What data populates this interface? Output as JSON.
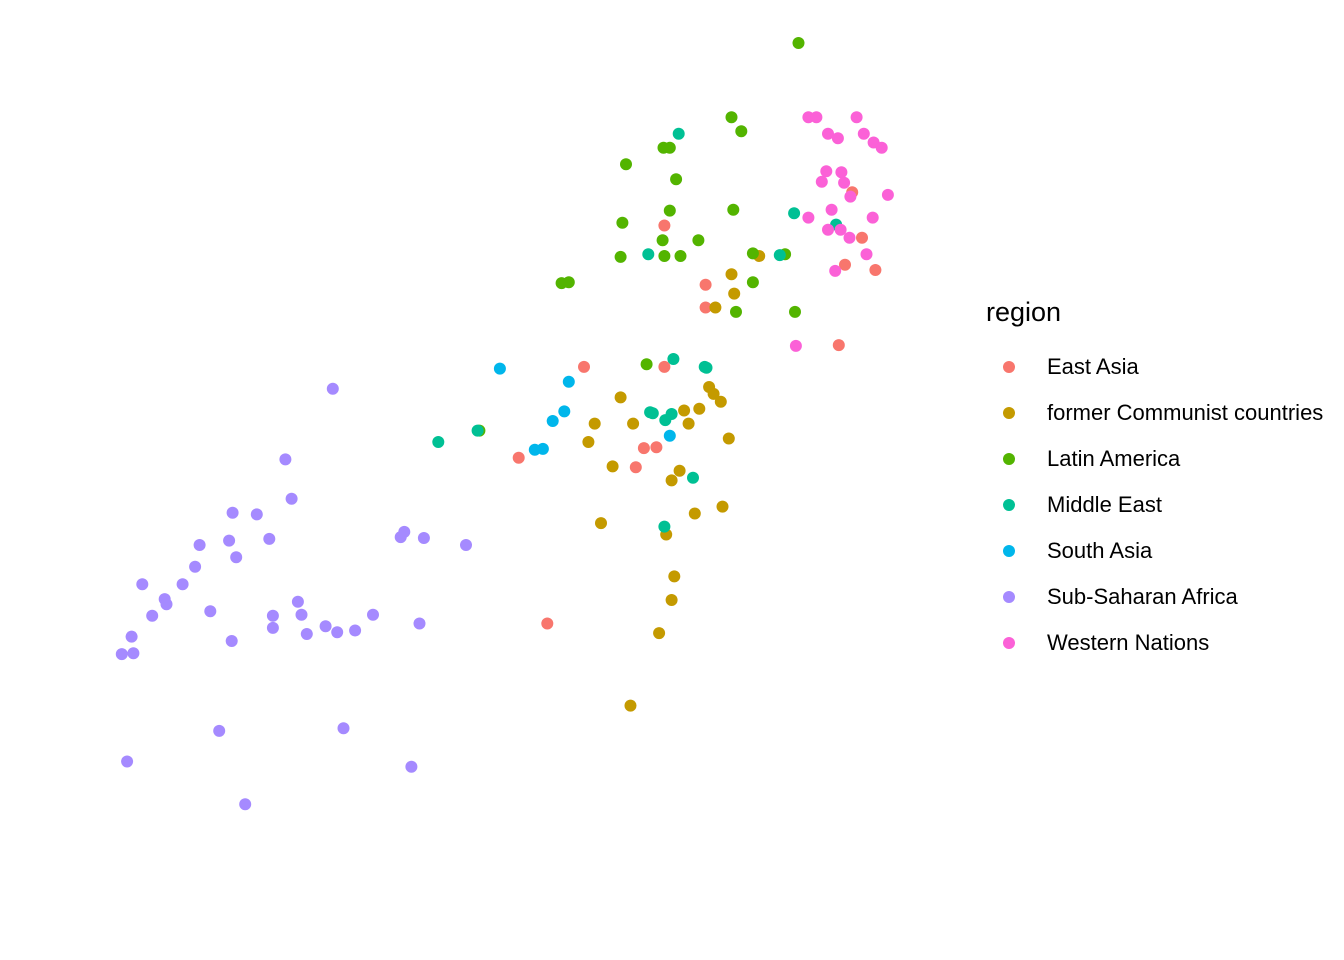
{
  "chart_data": {
    "type": "scatter",
    "title": "",
    "xlabel": "",
    "ylabel": "",
    "grid": false,
    "axes_visible": false,
    "xlim": [
      0,
      100
    ],
    "ylim": [
      0,
      100
    ],
    "legend": {
      "title": "region",
      "placement": "right"
    },
    "series": [
      {
        "name": "East Asia",
        "color": "#F8766D",
        "points": [
          [
            56.3,
            33.5
          ],
          [
            69.4,
            79.1
          ],
          [
            74.0,
            69.7
          ],
          [
            74.0,
            72.3
          ],
          [
            69.4,
            62.9
          ],
          [
            68.5,
            53.7
          ],
          [
            66.2,
            51.4
          ],
          [
            67.1,
            53.6
          ],
          [
            60.4,
            62.9
          ],
          [
            89.6,
            74.6
          ],
          [
            88.9,
            65.4
          ],
          [
            90.4,
            82.9
          ],
          [
            91.5,
            77.7
          ],
          [
            93.0,
            74.0
          ],
          [
            53.1,
            52.5
          ]
        ]
      },
      {
        "name": "former Communist countries",
        "color": "#C49A00",
        "points": [
          [
            62.3,
            45.0
          ],
          [
            65.9,
            56.4
          ],
          [
            63.6,
            51.5
          ],
          [
            61.6,
            56.4
          ],
          [
            60.9,
            54.3
          ],
          [
            64.5,
            59.4
          ],
          [
            71.1,
            51.0
          ],
          [
            70.2,
            49.9
          ],
          [
            72.8,
            46.1
          ],
          [
            73.3,
            58.1
          ],
          [
            71.6,
            57.9
          ],
          [
            75.1,
            69.7
          ],
          [
            76.9,
            73.5
          ],
          [
            77.2,
            71.3
          ],
          [
            80.0,
            75.6
          ],
          [
            74.4,
            60.6
          ],
          [
            74.9,
            59.8
          ],
          [
            75.7,
            58.9
          ],
          [
            76.6,
            54.7
          ],
          [
            69.6,
            43.7
          ],
          [
            70.2,
            36.2
          ],
          [
            70.5,
            38.9
          ],
          [
            75.9,
            46.9
          ],
          [
            68.8,
            32.4
          ],
          [
            65.6,
            24.1
          ],
          [
            72.1,
            56.4
          ]
        ]
      },
      {
        "name": "Latin America",
        "color": "#53B400",
        "points": [
          [
            84.4,
            100.0
          ],
          [
            76.9,
            91.5
          ],
          [
            78.0,
            89.9
          ],
          [
            69.3,
            88.0
          ],
          [
            70.0,
            88.0
          ],
          [
            65.1,
            86.1
          ],
          [
            70.7,
            84.4
          ],
          [
            70.0,
            80.8
          ],
          [
            77.1,
            80.9
          ],
          [
            64.7,
            79.4
          ],
          [
            69.2,
            77.4
          ],
          [
            73.2,
            77.4
          ],
          [
            79.3,
            75.9
          ],
          [
            64.5,
            75.5
          ],
          [
            69.4,
            75.6
          ],
          [
            71.2,
            75.6
          ],
          [
            82.9,
            75.8
          ],
          [
            79.3,
            72.6
          ],
          [
            57.9,
            72.5
          ],
          [
            58.7,
            72.6
          ],
          [
            77.4,
            69.2
          ],
          [
            84.0,
            69.2
          ],
          [
            67.4,
            63.2
          ],
          [
            48.7,
            55.6
          ]
        ]
      },
      {
        "name": "Middle East",
        "color": "#00C094",
        "points": [
          [
            71.0,
            89.6
          ],
          [
            83.9,
            80.5
          ],
          [
            88.6,
            79.2
          ],
          [
            67.6,
            75.8
          ],
          [
            82.3,
            75.7
          ],
          [
            70.4,
            63.8
          ],
          [
            73.9,
            62.9
          ],
          [
            74.1,
            62.8
          ],
          [
            67.8,
            57.7
          ],
          [
            68.1,
            57.6
          ],
          [
            69.5,
            56.8
          ],
          [
            70.2,
            57.5
          ],
          [
            72.6,
            50.2
          ],
          [
            48.5,
            55.6
          ],
          [
            44.1,
            54.3
          ],
          [
            69.4,
            44.6
          ]
        ]
      },
      {
        "name": "South Asia",
        "color": "#00B6EB",
        "points": [
          [
            58.7,
            61.2
          ],
          [
            51.0,
            62.7
          ],
          [
            58.2,
            57.8
          ],
          [
            56.9,
            56.7
          ],
          [
            54.9,
            53.4
          ],
          [
            55.8,
            53.5
          ],
          [
            70.0,
            55.0
          ]
        ]
      },
      {
        "name": "Sub-Saharan Africa",
        "color": "#A58AFF",
        "points": [
          [
            32.3,
            60.4
          ],
          [
            27.0,
            52.3
          ],
          [
            27.7,
            47.8
          ],
          [
            21.1,
            46.2
          ],
          [
            23.8,
            46.0
          ],
          [
            20.7,
            43.0
          ],
          [
            25.2,
            43.2
          ],
          [
            17.4,
            42.5
          ],
          [
            21.5,
            41.1
          ],
          [
            16.9,
            40.0
          ],
          [
            39.9,
            43.4
          ],
          [
            42.5,
            43.3
          ],
          [
            47.2,
            42.5
          ],
          [
            40.3,
            44.0
          ],
          [
            13.5,
            36.3
          ],
          [
            15.5,
            38.0
          ],
          [
            12.1,
            34.4
          ],
          [
            11.0,
            38.0
          ],
          [
            13.7,
            35.7
          ],
          [
            18.6,
            34.9
          ],
          [
            25.6,
            34.4
          ],
          [
            28.4,
            36.0
          ],
          [
            28.8,
            34.5
          ],
          [
            25.6,
            33.0
          ],
          [
            21.0,
            31.5
          ],
          [
            29.4,
            32.3
          ],
          [
            31.5,
            33.2
          ],
          [
            32.8,
            32.5
          ],
          [
            34.8,
            32.7
          ],
          [
            36.8,
            34.5
          ],
          [
            42.0,
            33.5
          ],
          [
            9.8,
            32.0
          ],
          [
            8.7,
            30.0
          ],
          [
            10.0,
            30.1
          ],
          [
            19.6,
            21.2
          ],
          [
            33.5,
            21.5
          ],
          [
            9.3,
            17.7
          ],
          [
            41.1,
            17.1
          ],
          [
            22.5,
            12.8
          ]
        ]
      },
      {
        "name": "Western Nations",
        "color": "#FB61D7",
        "points": [
          [
            85.5,
            91.5
          ],
          [
            86.4,
            91.5
          ],
          [
            87.7,
            89.6
          ],
          [
            88.8,
            89.1
          ],
          [
            90.9,
            91.5
          ],
          [
            91.7,
            89.6
          ],
          [
            92.8,
            88.6
          ],
          [
            93.7,
            88.0
          ],
          [
            87.5,
            85.3
          ],
          [
            89.2,
            85.2
          ],
          [
            87.0,
            84.1
          ],
          [
            89.5,
            84.0
          ],
          [
            90.2,
            82.4
          ],
          [
            94.4,
            82.6
          ],
          [
            88.1,
            80.9
          ],
          [
            87.7,
            78.6
          ],
          [
            89.1,
            78.6
          ],
          [
            90.1,
            77.7
          ],
          [
            92.0,
            75.8
          ],
          [
            88.5,
            73.9
          ],
          [
            84.1,
            65.3
          ],
          [
            85.5,
            80.0
          ],
          [
            92.7,
            80.0
          ]
        ]
      }
    ]
  }
}
